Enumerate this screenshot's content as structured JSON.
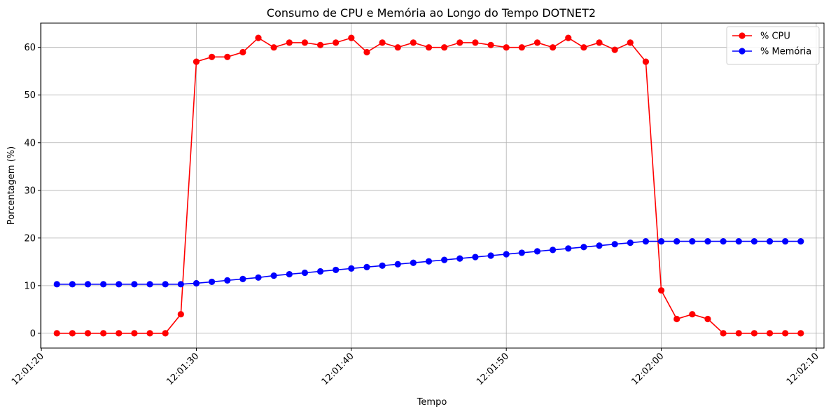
{
  "chart_data": {
    "type": "line",
    "title": "Consumo de CPU e Memória ao Longo do Tempo DOTNET2",
    "xlabel": "Tempo",
    "ylabel": "Porcentagem (%)",
    "grid": true,
    "legend_position": "top-right",
    "ylim": [
      -3.1,
      65.1
    ],
    "xlim": [
      "12:01:19.95",
      "12:02:10.5"
    ],
    "x_ticks": [
      "12:01:20",
      "12:01:30",
      "12:01:40",
      "12:01:50",
      "12:02:00",
      "12:02:10"
    ],
    "y_ticks": [
      "0",
      "10",
      "20",
      "30",
      "40",
      "50",
      "60"
    ],
    "x": [
      "12:01:21",
      "12:01:22",
      "12:01:23",
      "12:01:24",
      "12:01:25",
      "12:01:26",
      "12:01:27",
      "12:01:28",
      "12:01:29",
      "12:01:30",
      "12:01:31",
      "12:01:32",
      "12:01:33",
      "12:01:34",
      "12:01:35",
      "12:01:36",
      "12:01:37",
      "12:01:38",
      "12:01:39",
      "12:01:40",
      "12:01:41",
      "12:01:42",
      "12:01:43",
      "12:01:44",
      "12:01:45",
      "12:01:46",
      "12:01:47",
      "12:01:48",
      "12:01:49",
      "12:01:50",
      "12:01:51",
      "12:01:52",
      "12:01:53",
      "12:01:54",
      "12:01:55",
      "12:01:56",
      "12:01:57",
      "12:01:58",
      "12:01:59",
      "12:02:00",
      "12:02:01",
      "12:02:02",
      "12:02:03",
      "12:02:04",
      "12:02:05",
      "12:02:06",
      "12:02:07",
      "12:02:08",
      "12:02:09"
    ],
    "series": [
      {
        "name": "% CPU",
        "color": "#ff0000",
        "marker": "circle",
        "values": [
          0,
          0,
          0,
          0,
          0,
          0,
          0,
          0,
          4,
          57,
          58,
          58,
          59,
          62,
          60,
          61,
          61,
          60.5,
          61,
          62,
          59,
          61,
          60,
          61,
          60,
          60,
          61,
          61,
          60.5,
          60,
          60,
          61,
          60,
          62,
          60,
          61,
          59.5,
          61,
          57,
          9,
          3,
          4,
          3,
          0,
          0,
          0,
          0,
          0,
          0
        ]
      },
      {
        "name": "% Memória",
        "color": "#0000ff",
        "marker": "circle",
        "values": [
          10.3,
          10.3,
          10.3,
          10.3,
          10.3,
          10.3,
          10.3,
          10.3,
          10.3,
          10.5,
          10.8,
          11.1,
          11.4,
          11.7,
          12.1,
          12.4,
          12.7,
          13.0,
          13.3,
          13.6,
          13.9,
          14.2,
          14.5,
          14.8,
          15.1,
          15.4,
          15.7,
          16.0,
          16.3,
          16.6,
          16.9,
          17.2,
          17.5,
          17.8,
          18.1,
          18.4,
          18.7,
          19.0,
          19.3,
          19.3,
          19.3,
          19.3,
          19.3,
          19.3,
          19.3,
          19.3,
          19.3,
          19.3,
          19.3
        ]
      }
    ]
  }
}
